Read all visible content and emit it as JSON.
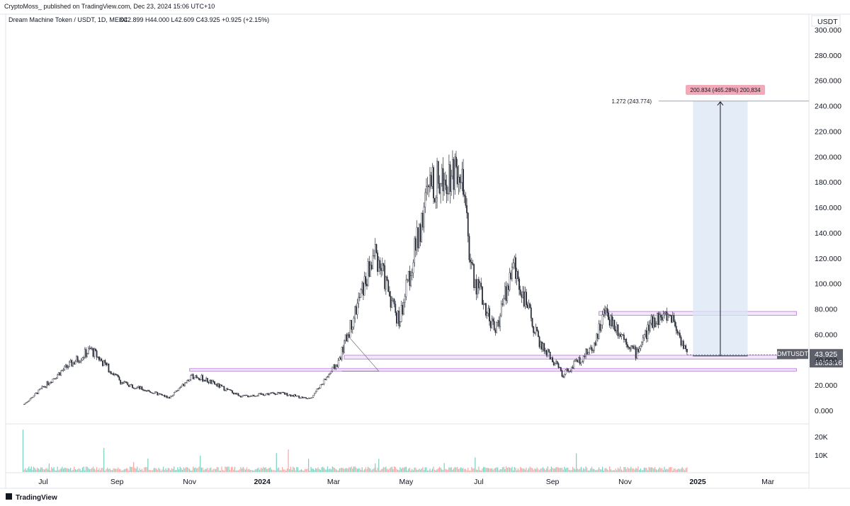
{
  "header": {
    "publisher": "CryptoMoss_ published on TradingView.com, Dec 23, 2024 15:06 UTC+10",
    "symbol_line": "Dream Machine Token / USDT, 1D, MEXC",
    "ohlc": "O42.899 H44.000 L42.609 C43.925 +0.925 (+2.15%)",
    "quote_currency": "USDT"
  },
  "footer": {
    "brand": "TradingView"
  },
  "price_tag": {
    "symbol": "DMTUSDT",
    "price": "43.925",
    "countdown": "18:53:16"
  },
  "annotations": {
    "fib_label": "1.272 (243.774)",
    "measure_label": "200.834 (465.28%) 200,834"
  },
  "colors": {
    "candle": "#2a2e39",
    "box_border": "#c38ee0",
    "box_fill": "#f3e8fa",
    "projection_fill": "#dbe6f6",
    "measure_badge": "#f2aab9",
    "vol_up": "#7ad0c1",
    "vol_down": "#f4a7a3",
    "tag_bg": "#5d606b"
  },
  "chart_data": {
    "type": "candlestick",
    "symbol": "DMTUSDT",
    "timeframe": "1D",
    "exchange": "MEXC",
    "ylim": [
      0,
      300
    ],
    "y_ticks": [
      "0.000",
      "20.000",
      "40.000",
      "60.000",
      "80.000",
      "100.000",
      "120.000",
      "140.000",
      "160.000",
      "180.000",
      "200.000",
      "220.000",
      "240.000",
      "260.000",
      "280.000",
      "300.000"
    ],
    "x_ticks": [
      "Jul",
      "Sep",
      "Nov",
      "2024",
      "Mar",
      "May",
      "Jul",
      "Sep",
      "Nov",
      "2025",
      "Mar"
    ],
    "volume_ticks": [
      "10K",
      "20K"
    ],
    "price_path_approx": [
      {
        "date": "2023-06-15",
        "close": 5
      },
      {
        "date": "2023-07-15",
        "close": 30
      },
      {
        "date": "2023-08-10",
        "close": 48
      },
      {
        "date": "2023-09-05",
        "close": 22
      },
      {
        "date": "2023-10-15",
        "close": 10
      },
      {
        "date": "2023-11-05",
        "close": 28
      },
      {
        "date": "2023-12-15",
        "close": 11
      },
      {
        "date": "2024-01-15",
        "close": 14
      },
      {
        "date": "2024-02-10",
        "close": 9
      },
      {
        "date": "2024-03-05",
        "close": 38
      },
      {
        "date": "2024-04-05",
        "close": 125
      },
      {
        "date": "2024-04-25",
        "close": 70
      },
      {
        "date": "2024-05-20",
        "close": 175
      },
      {
        "date": "2024-06-15",
        "close": 195
      },
      {
        "date": "2024-06-25",
        "close": 110
      },
      {
        "date": "2024-07-15",
        "close": 62
      },
      {
        "date": "2024-07-30",
        "close": 115
      },
      {
        "date": "2024-08-20",
        "close": 55
      },
      {
        "date": "2024-09-10",
        "close": 28
      },
      {
        "date": "2024-10-05",
        "close": 50
      },
      {
        "date": "2024-10-15",
        "close": 78
      },
      {
        "date": "2024-11-10",
        "close": 45
      },
      {
        "date": "2024-11-25",
        "close": 72
      },
      {
        "date": "2024-12-10",
        "close": 75
      },
      {
        "date": "2024-12-23",
        "close": 43.925
      }
    ],
    "last_ohlc": {
      "open": 42.899,
      "high": 44.0,
      "low": 42.609,
      "close": 43.925,
      "change": 0.925,
      "change_pct": 2.15
    },
    "support_bands": [
      {
        "from": "2023-11-01",
        "to": "2025-03-25",
        "low": 31,
        "high": 33
      },
      {
        "from": "2024-03-10",
        "to": "2025-03-25",
        "low": 40.5,
        "high": 43.5
      },
      {
        "from": "2024-10-10",
        "to": "2025-03-25",
        "low": 75,
        "high": 78
      }
    ],
    "projection": {
      "from": "2024-12-28",
      "to": "2025-02-12",
      "base": 43,
      "target": 243.774,
      "change": 200.834,
      "change_pct": 465.28
    },
    "fib_level": {
      "ratio": 1.272,
      "price": 243.774
    }
  }
}
